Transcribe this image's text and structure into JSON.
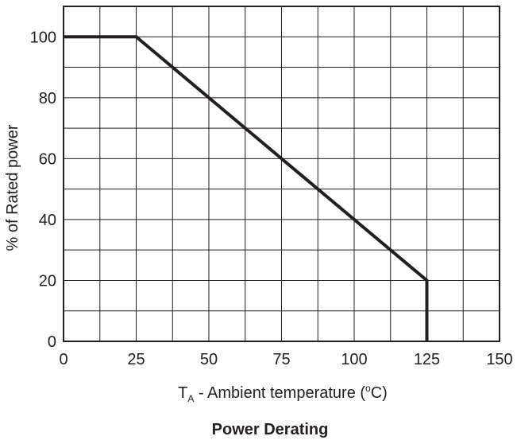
{
  "chart_data": {
    "type": "line",
    "title": "Power Derating",
    "xlabel": {
      "main": "T",
      "subscript": "A",
      "rest": " - Ambient temperature (",
      "superscript": "o",
      "unit_end": "C)"
    },
    "ylabel": "% of Rated power",
    "xlim": [
      0,
      150
    ],
    "ylim": [
      0,
      110
    ],
    "x_ticks": [
      "0",
      "25",
      "50",
      "75",
      "100",
      "125",
      "150"
    ],
    "y_ticks": [
      "0",
      "20",
      "40",
      "60",
      "80",
      "100"
    ],
    "grid": true,
    "series": [
      {
        "color": "#231f20",
        "x": [
          0,
          25,
          125,
          125
        ],
        "y": [
          100,
          100,
          20,
          0
        ]
      }
    ]
  }
}
